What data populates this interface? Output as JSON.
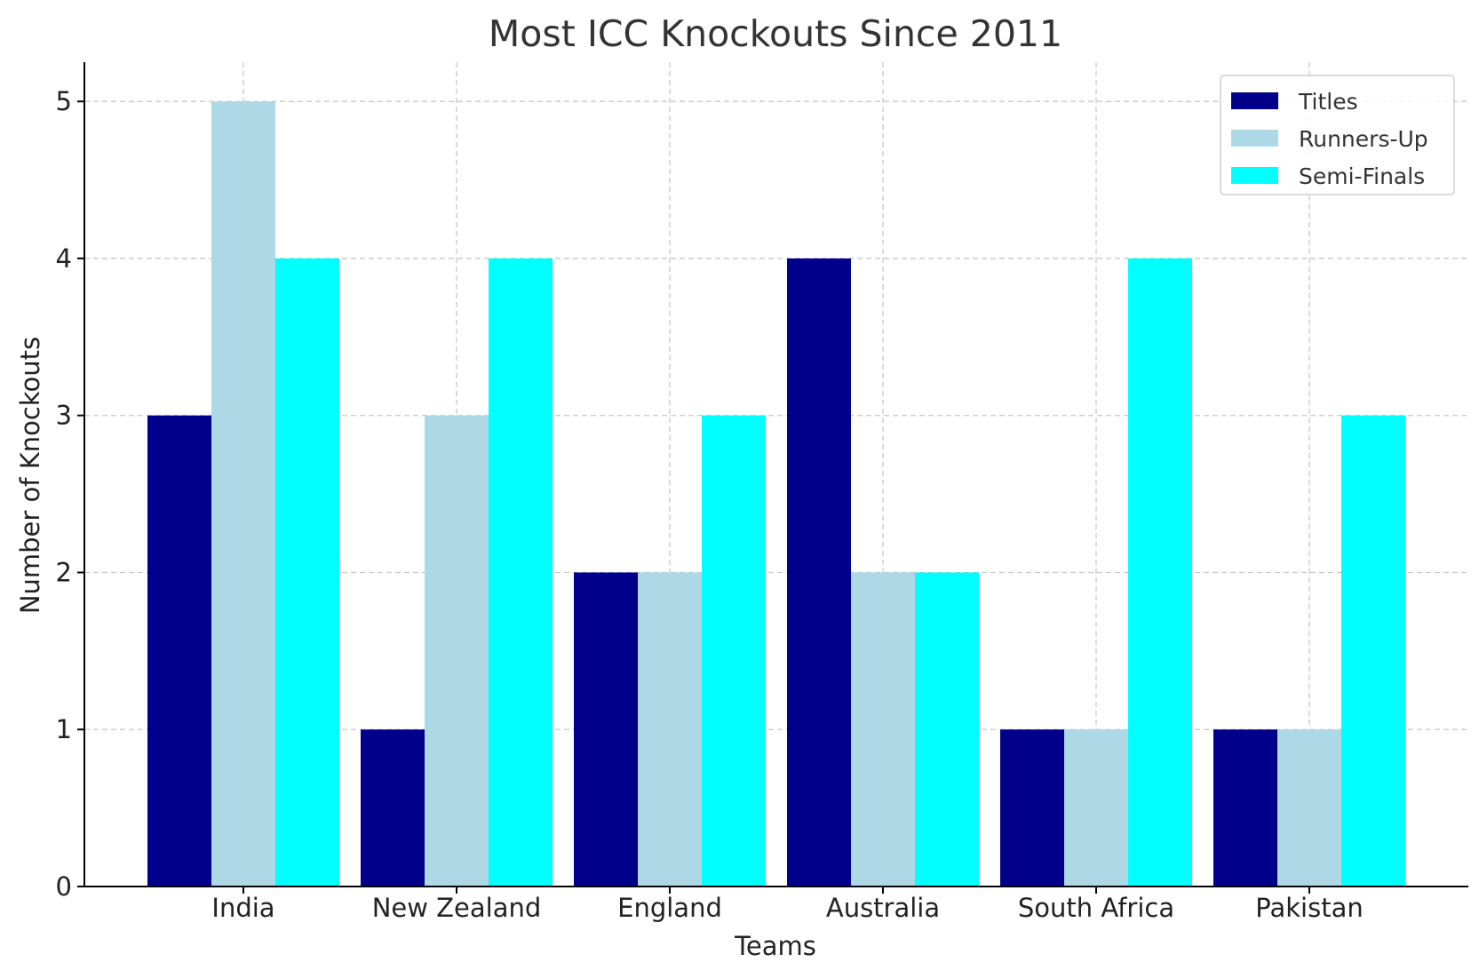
{
  "chart_data": {
    "type": "bar",
    "title": "Most ICC Knockouts Since 2011",
    "xlabel": "Teams",
    "ylabel": "Number of Knockouts",
    "categories": [
      "India",
      "New Zealand",
      "England",
      "Australia",
      "South Africa",
      "Pakistan"
    ],
    "series": [
      {
        "name": "Titles",
        "color": "#00008b",
        "values": [
          3,
          1,
          2,
          4,
          1,
          1
        ]
      },
      {
        "name": "Runners-Up",
        "color": "#add8e6",
        "values": [
          5,
          3,
          2,
          2,
          1,
          1
        ]
      },
      {
        "name": "Semi-Finals",
        "color": "#00ffff",
        "values": [
          4,
          4,
          3,
          2,
          4,
          3
        ]
      }
    ],
    "ylim": [
      0,
      5.25
    ],
    "yticks": [
      "0",
      "1",
      "2",
      "3",
      "4",
      "5"
    ],
    "grid": true,
    "legend_position": "top-right"
  }
}
